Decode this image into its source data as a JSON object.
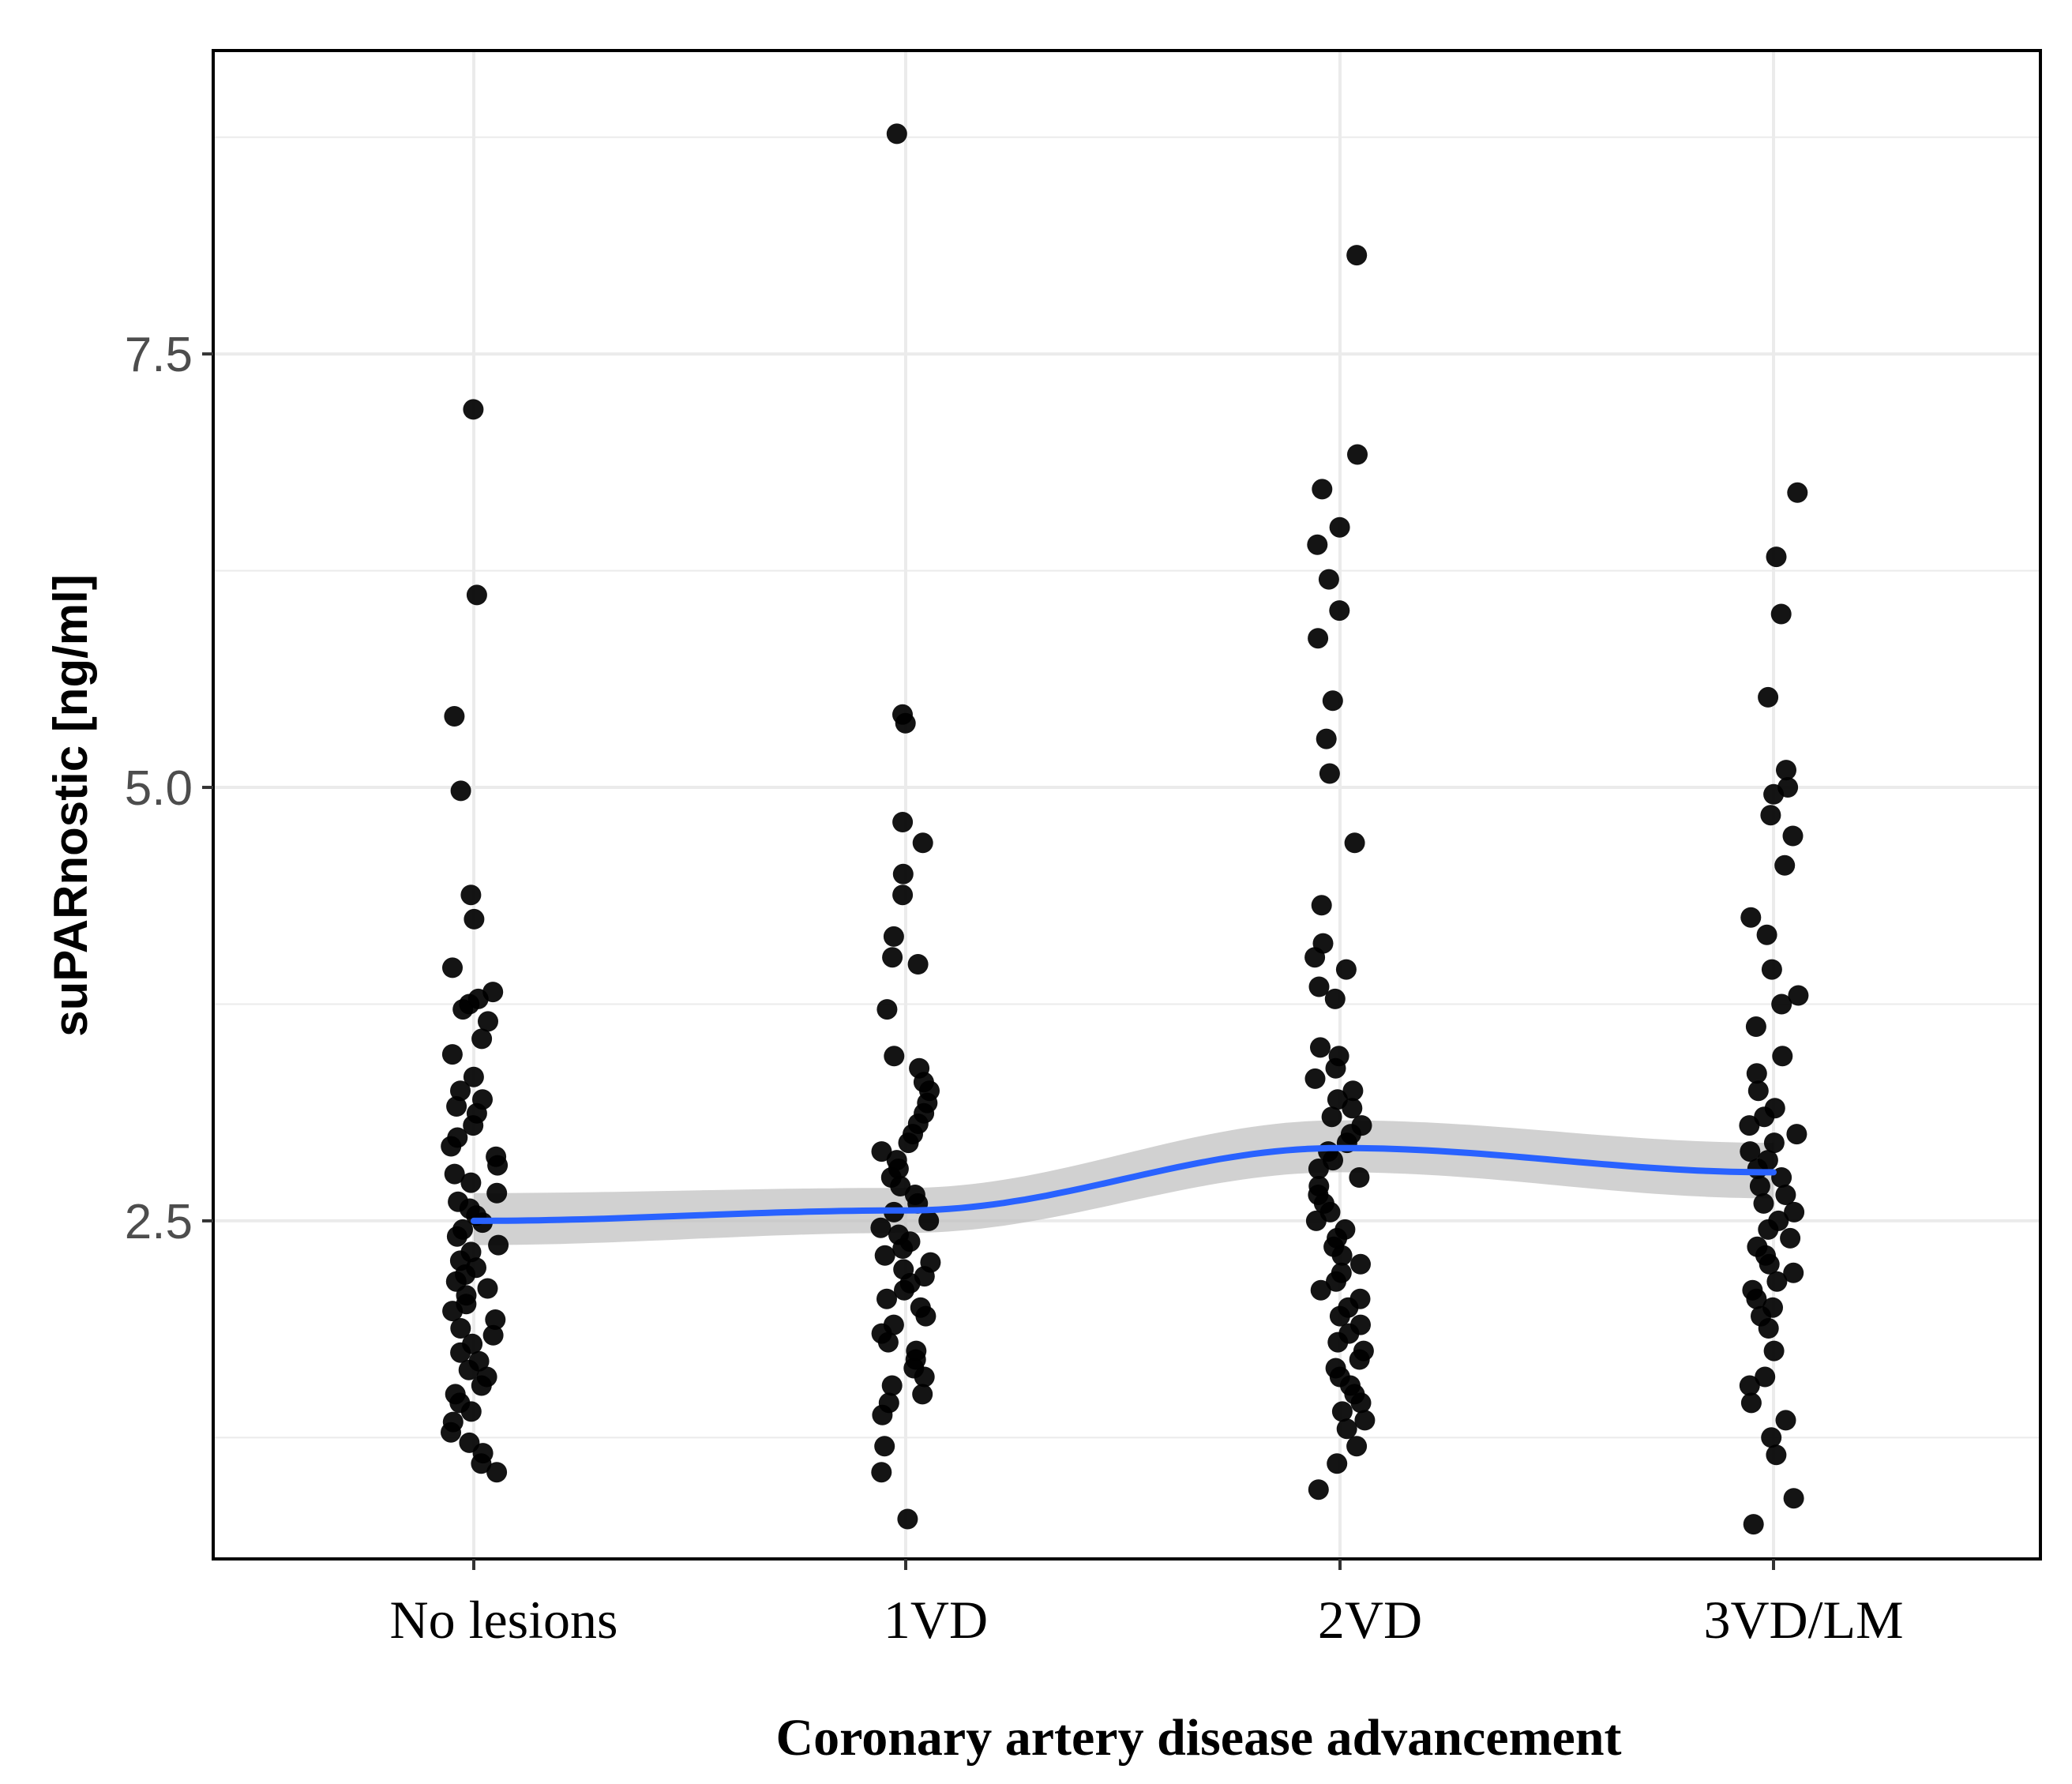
{
  "chart_data": {
    "type": "scatter",
    "title": "",
    "xlabel": "Coronary artery disease advancement",
    "ylabel": "suPARnostic [ng/ml]",
    "categories": [
      "No lesions",
      "1VD",
      "2VD",
      "3VD/LM"
    ],
    "yticks": [
      "2.5",
      "5.0",
      "7.5"
    ],
    "ytick_values": [
      2.5,
      5.0,
      7.5
    ],
    "ylim": [
      0.55,
      9.25
    ],
    "grid": true,
    "colors": {
      "points": "#000000",
      "smooth_line": "#2962ff",
      "confidence_band": "#bdbdbd",
      "grid": "#ebebeb",
      "border": "#000000"
    },
    "smooth": {
      "method": "loess",
      "x": [
        0,
        1,
        2,
        3
      ],
      "y": [
        2.5,
        2.56,
        2.92,
        2.78
      ],
      "lower": [
        2.36,
        2.43,
        2.78,
        2.63
      ],
      "upper": [
        2.66,
        2.69,
        3.08,
        2.95
      ]
    },
    "series": [
      {
        "name": "No lesions",
        "values": [
          7.18,
          6.11,
          5.41,
          4.98,
          4.38,
          4.24,
          3.96,
          3.82,
          3.78,
          3.75,
          3.72,
          3.65,
          3.55,
          3.46,
          3.33,
          3.25,
          3.2,
          3.16,
          3.12,
          3.05,
          2.98,
          2.93,
          2.87,
          2.82,
          2.77,
          2.72,
          2.66,
          2.61,
          2.57,
          2.53,
          2.49,
          2.45,
          2.41,
          2.36,
          2.32,
          2.27,
          2.23,
          2.19,
          2.15,
          2.11,
          2.07,
          2.02,
          1.98,
          1.93,
          1.88,
          1.84,
          1.79,
          1.74,
          1.69,
          1.64,
          1.6,
          1.55,
          1.5,
          1.45,
          1.4,
          1.34,
          1.28,
          1.22,
          1.16,
          1.1,
          1.05
        ]
      },
      {
        "name": "1VD",
        "values": [
          8.77,
          5.42,
          5.37,
          4.8,
          4.68,
          4.5,
          4.38,
          4.14,
          4.02,
          3.98,
          3.72,
          3.45,
          3.38,
          3.3,
          3.25,
          3.18,
          3.12,
          3.06,
          3.0,
          2.95,
          2.9,
          2.85,
          2.8,
          2.75,
          2.7,
          2.65,
          2.6,
          2.55,
          2.5,
          2.46,
          2.42,
          2.38,
          2.34,
          2.3,
          2.26,
          2.22,
          2.18,
          2.14,
          2.1,
          2.05,
          2.0,
          1.95,
          1.9,
          1.85,
          1.8,
          1.75,
          1.7,
          1.65,
          1.6,
          1.55,
          1.5,
          1.45,
          1.38,
          1.2,
          1.05,
          0.78
        ]
      },
      {
        "name": "2VD",
        "values": [
          8.07,
          6.92,
          6.72,
          6.5,
          6.4,
          6.2,
          6.02,
          5.86,
          5.5,
          5.28,
          5.08,
          4.68,
          4.32,
          4.1,
          4.02,
          3.95,
          3.85,
          3.78,
          3.5,
          3.45,
          3.38,
          3.32,
          3.25,
          3.2,
          3.15,
          3.1,
          3.05,
          3.0,
          2.95,
          2.9,
          2.85,
          2.8,
          2.75,
          2.7,
          2.65,
          2.6,
          2.55,
          2.5,
          2.45,
          2.4,
          2.35,
          2.3,
          2.25,
          2.2,
          2.15,
          2.1,
          2.05,
          2.0,
          1.95,
          1.9,
          1.85,
          1.8,
          1.75,
          1.7,
          1.65,
          1.6,
          1.55,
          1.5,
          1.45,
          1.4,
          1.35,
          1.3,
          1.2,
          1.1,
          0.95
        ]
      },
      {
        "name": "3VD/LM",
        "values": [
          6.7,
          6.33,
          6.0,
          5.52,
          5.1,
          5.0,
          4.96,
          4.84,
          4.72,
          4.55,
          4.25,
          4.15,
          3.95,
          3.8,
          3.75,
          3.62,
          3.45,
          3.35,
          3.25,
          3.15,
          3.1,
          3.05,
          3.0,
          2.95,
          2.9,
          2.85,
          2.8,
          2.75,
          2.7,
          2.65,
          2.6,
          2.55,
          2.5,
          2.45,
          2.4,
          2.35,
          2.3,
          2.25,
          2.2,
          2.15,
          2.1,
          2.05,
          2.0,
          1.95,
          1.88,
          1.75,
          1.6,
          1.55,
          1.45,
          1.35,
          1.25,
          1.15,
          0.9,
          0.75
        ]
      }
    ]
  }
}
